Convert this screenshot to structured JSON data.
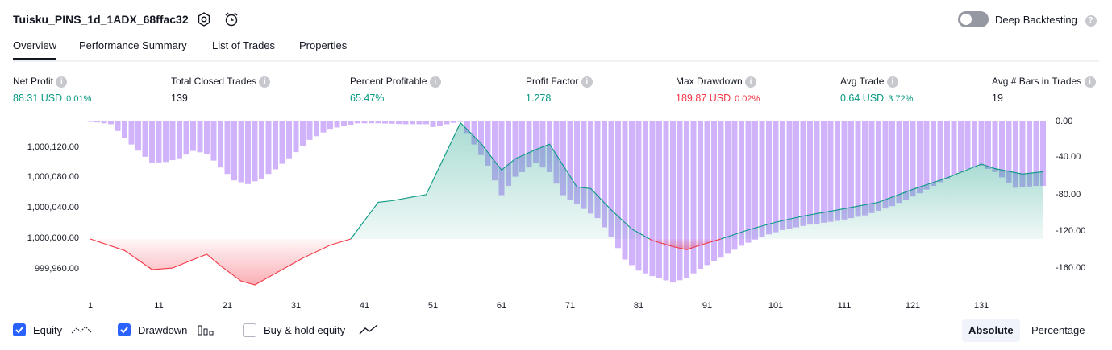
{
  "header": {
    "title": "Tuisku_PINS_1d_1ADX_68ffac32",
    "deep_backtesting_label": "Deep Backtesting"
  },
  "tabs": [
    "Overview",
    "Performance Summary",
    "List of Trades",
    "Properties"
  ],
  "metrics": [
    {
      "label": "Net Profit",
      "value": "88.31 USD",
      "pct": "0.01%",
      "color": "green"
    },
    {
      "label": "Total Closed Trades",
      "value": "139",
      "color": "dark"
    },
    {
      "label": "Percent Profitable",
      "value": "65.47%",
      "color": "green"
    },
    {
      "label": "Profit Factor",
      "value": "1.278",
      "color": "green"
    },
    {
      "label": "Max Drawdown",
      "value": "189.87 USD",
      "pct": "0.02%",
      "color": "red"
    },
    {
      "label": "Avg Trade",
      "value": "0.64 USD",
      "pct": "3.72%",
      "color": "green"
    },
    {
      "label": "Avg # Bars in Trades",
      "value": "19",
      "color": "dark"
    }
  ],
  "chart_data": {
    "type": "line",
    "y_left_ticks": [
      "1,000,120.00",
      "1,000,080.00",
      "1,000,040.00",
      "1,000,000.00",
      "999,960.00"
    ],
    "y_right_ticks": [
      "0.00",
      "-40.00",
      "-80.00",
      "-120.00",
      "-160.00"
    ],
    "x_ticks": [
      "1",
      "11",
      "21",
      "31",
      "41",
      "51",
      "61",
      "71",
      "81",
      "91",
      "101",
      "111",
      "121",
      "131"
    ],
    "colors": {
      "equity_up": "#089981",
      "equity_down": "#f23645",
      "drawdown": "#c9a6fb"
    },
    "equity_points": [
      [
        1,
        1000000
      ],
      [
        6,
        999985
      ],
      [
        10,
        999960
      ],
      [
        13,
        999962
      ],
      [
        16,
        999973
      ],
      [
        18,
        999980
      ],
      [
        20,
        999965
      ],
      [
        23,
        999945
      ],
      [
        25,
        999940
      ],
      [
        28,
        999955
      ],
      [
        32,
        999975
      ],
      [
        36,
        999992
      ],
      [
        39,
        1000000
      ],
      [
        43,
        1000048
      ],
      [
        45,
        1000050
      ],
      [
        48,
        1000055
      ],
      [
        50,
        1000058
      ],
      [
        55,
        1000152
      ],
      [
        58,
        1000125
      ],
      [
        61,
        1000090
      ],
      [
        63,
        1000105
      ],
      [
        66,
        1000117
      ],
      [
        68,
        1000124
      ],
      [
        72,
        1000068
      ],
      [
        74,
        1000066
      ],
      [
        77,
        1000038
      ],
      [
        80,
        1000013
      ],
      [
        83,
        999998
      ],
      [
        86,
        999990
      ],
      [
        88,
        999986
      ],
      [
        90,
        999992
      ],
      [
        93,
        1000000
      ],
      [
        97,
        1000012
      ],
      [
        101,
        1000022
      ],
      [
        105,
        1000030
      ],
      [
        110,
        1000038
      ],
      [
        116,
        1000048
      ],
      [
        121,
        1000065
      ],
      [
        126,
        1000080
      ],
      [
        131,
        1000098
      ],
      [
        133,
        1000092
      ],
      [
        137,
        1000085
      ],
      [
        140,
        1000088
      ]
    ],
    "drawdown_points": [
      [
        1,
        0
      ],
      [
        4,
        -3
      ],
      [
        7,
        -25
      ],
      [
        10,
        -45
      ],
      [
        12,
        -44
      ],
      [
        14,
        -40
      ],
      [
        16,
        -32
      ],
      [
        18,
        -35
      ],
      [
        20,
        -50
      ],
      [
        22,
        -64
      ],
      [
        24,
        -68
      ],
      [
        26,
        -62
      ],
      [
        28,
        -52
      ],
      [
        30,
        -40
      ],
      [
        33,
        -20
      ],
      [
        36,
        -8
      ],
      [
        40,
        -2
      ],
      [
        43,
        -2
      ],
      [
        47,
        -3
      ],
      [
        50,
        -3
      ],
      [
        51,
        -6
      ],
      [
        55,
        0
      ],
      [
        57,
        -25
      ],
      [
        59,
        -48
      ],
      [
        61,
        -80
      ],
      [
        63,
        -60
      ],
      [
        66,
        -45
      ],
      [
        68,
        -55
      ],
      [
        70,
        -80
      ],
      [
        73,
        -95
      ],
      [
        75,
        -105
      ],
      [
        77,
        -125
      ],
      [
        79,
        -150
      ],
      [
        81,
        -162
      ],
      [
        83,
        -168
      ],
      [
        86,
        -175
      ],
      [
        88,
        -170
      ],
      [
        90,
        -160
      ],
      [
        93,
        -148
      ],
      [
        96,
        -135
      ],
      [
        99,
        -125
      ],
      [
        102,
        -118
      ],
      [
        106,
        -112
      ],
      [
        110,
        -108
      ],
      [
        114,
        -102
      ],
      [
        118,
        -92
      ],
      [
        122,
        -78
      ],
      [
        126,
        -62
      ],
      [
        129,
        -52
      ],
      [
        131,
        -48
      ],
      [
        133,
        -55
      ],
      [
        136,
        -72
      ],
      [
        139,
        -70
      ],
      [
        140,
        -70
      ]
    ]
  },
  "legend": {
    "equity": "Equity",
    "drawdown": "Drawdown",
    "buy_hold": "Buy & hold equity"
  },
  "view_modes": {
    "absolute": "Absolute",
    "percentage": "Percentage"
  }
}
